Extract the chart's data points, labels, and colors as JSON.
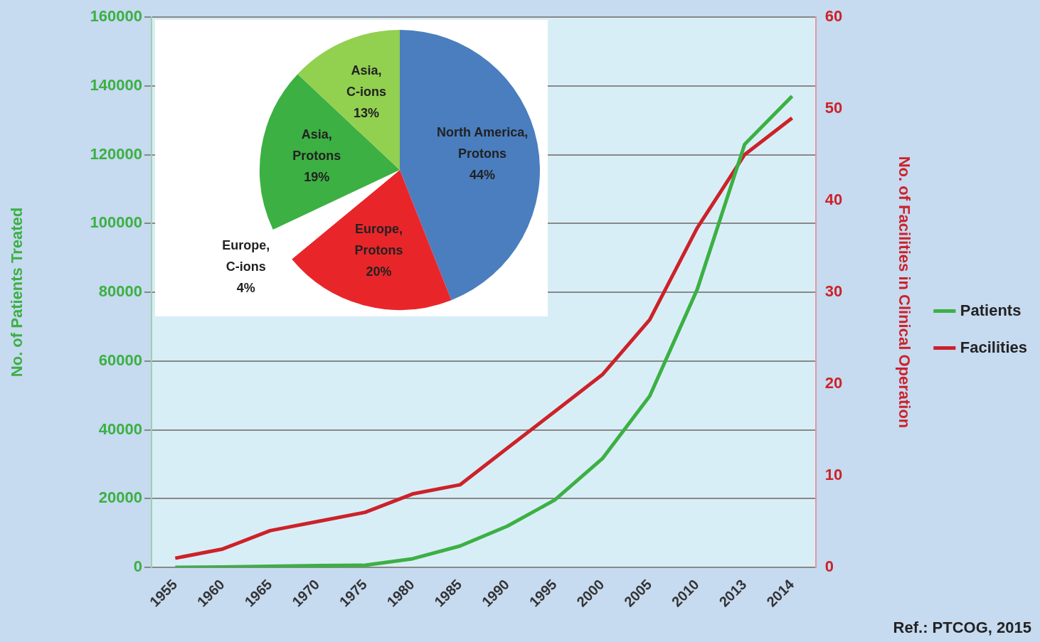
{
  "chart_data": [
    {
      "type": "line",
      "categories": [
        "1955",
        "1960",
        "1965",
        "1970",
        "1975",
        "1980",
        "1985",
        "1990",
        "1995",
        "2000",
        "2005",
        "2010",
        "2013",
        "2014"
      ],
      "series": [
        {
          "name": "Patients",
          "color": "#3cb043",
          "values": [
            0,
            100,
            300,
            500,
            600,
            2500,
            6200,
            12000,
            19600,
            31600,
            49800,
            80800,
            123000,
            137000
          ]
        },
        {
          "name": "Facilities",
          "color": "#cc2229",
          "axis": "y2",
          "values": [
            1,
            2,
            4,
            5,
            6,
            8,
            9,
            13,
            17,
            21,
            27,
            37,
            45,
            49
          ]
        }
      ],
      "ylabel": "No. of Patients Treated",
      "y2label": "No. of Facilities in Clinical Operation",
      "ylim": [
        0,
        160000
      ],
      "yticks": [
        0,
        20000,
        40000,
        60000,
        80000,
        100000,
        120000,
        140000,
        160000
      ],
      "y2lim": [
        0,
        60
      ],
      "y2ticks": [
        0,
        10,
        20,
        30,
        40,
        50,
        60
      ],
      "grid": "y",
      "legend": "right",
      "line_style": "solid",
      "annotations": [
        "Ref.: PTCOG, 2015"
      ]
    },
    {
      "type": "pie",
      "categories": [
        "North America, Protons",
        "Europe, Protons",
        "Europe, C-ions",
        "Asia, Protons",
        "Asia, C-ions"
      ],
      "values": [
        44,
        20,
        4,
        19,
        13
      ],
      "colors": [
        "#4a7ebf",
        "#e8262a",
        "#ffffff",
        "#3cb043",
        "#92d050"
      ],
      "value_labels": [
        "44%",
        "20%",
        "4%",
        "19%",
        "13%"
      ],
      "legend": false
    }
  ]
}
